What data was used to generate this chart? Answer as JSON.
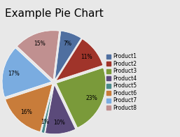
{
  "title": "Example Pie Chart",
  "labels": [
    "Product1",
    "Product2",
    "Product3",
    "Product4",
    "Product5",
    "Product6",
    "Product7",
    "Product8"
  ],
  "values": [
    7,
    11,
    23,
    10,
    1,
    16,
    17,
    15
  ],
  "colors": [
    "#4F6FA0",
    "#A0342A",
    "#7A9A3A",
    "#5B4A7A",
    "#4A8A8A",
    "#C87C3A",
    "#7AACE0",
    "#C09090"
  ],
  "explode": [
    0.05,
    0.05,
    0.05,
    0.05,
    0.05,
    0.05,
    0.05,
    0.05
  ],
  "startangle": 83,
  "title_fontsize": 11,
  "legend_fontsize": 5.5,
  "pct_fontsize": 5.5,
  "background_color": "#E8E8E8"
}
